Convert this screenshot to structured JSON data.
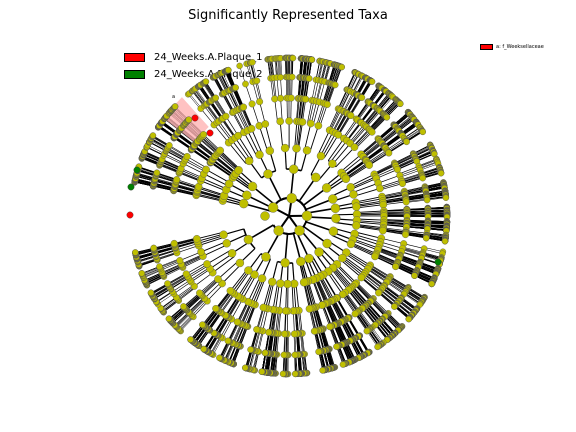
{
  "title": "Significantly Represented Taxa",
  "legend": [
    {
      "label": "24_Weeks.A.Plaque_1",
      "color": "#ff0000"
    },
    {
      "label": "24_Weeks.A.Plaque_2",
      "color": "#008000"
    }
  ],
  "annotation": {
    "letter": "a",
    "label": "a: f_Weeksellaceae",
    "color": "#ff0000"
  },
  "colors": {
    "node": "#bfbf00",
    "node_stroke": "#555555",
    "highlight": "#ffb3b3"
  }
}
